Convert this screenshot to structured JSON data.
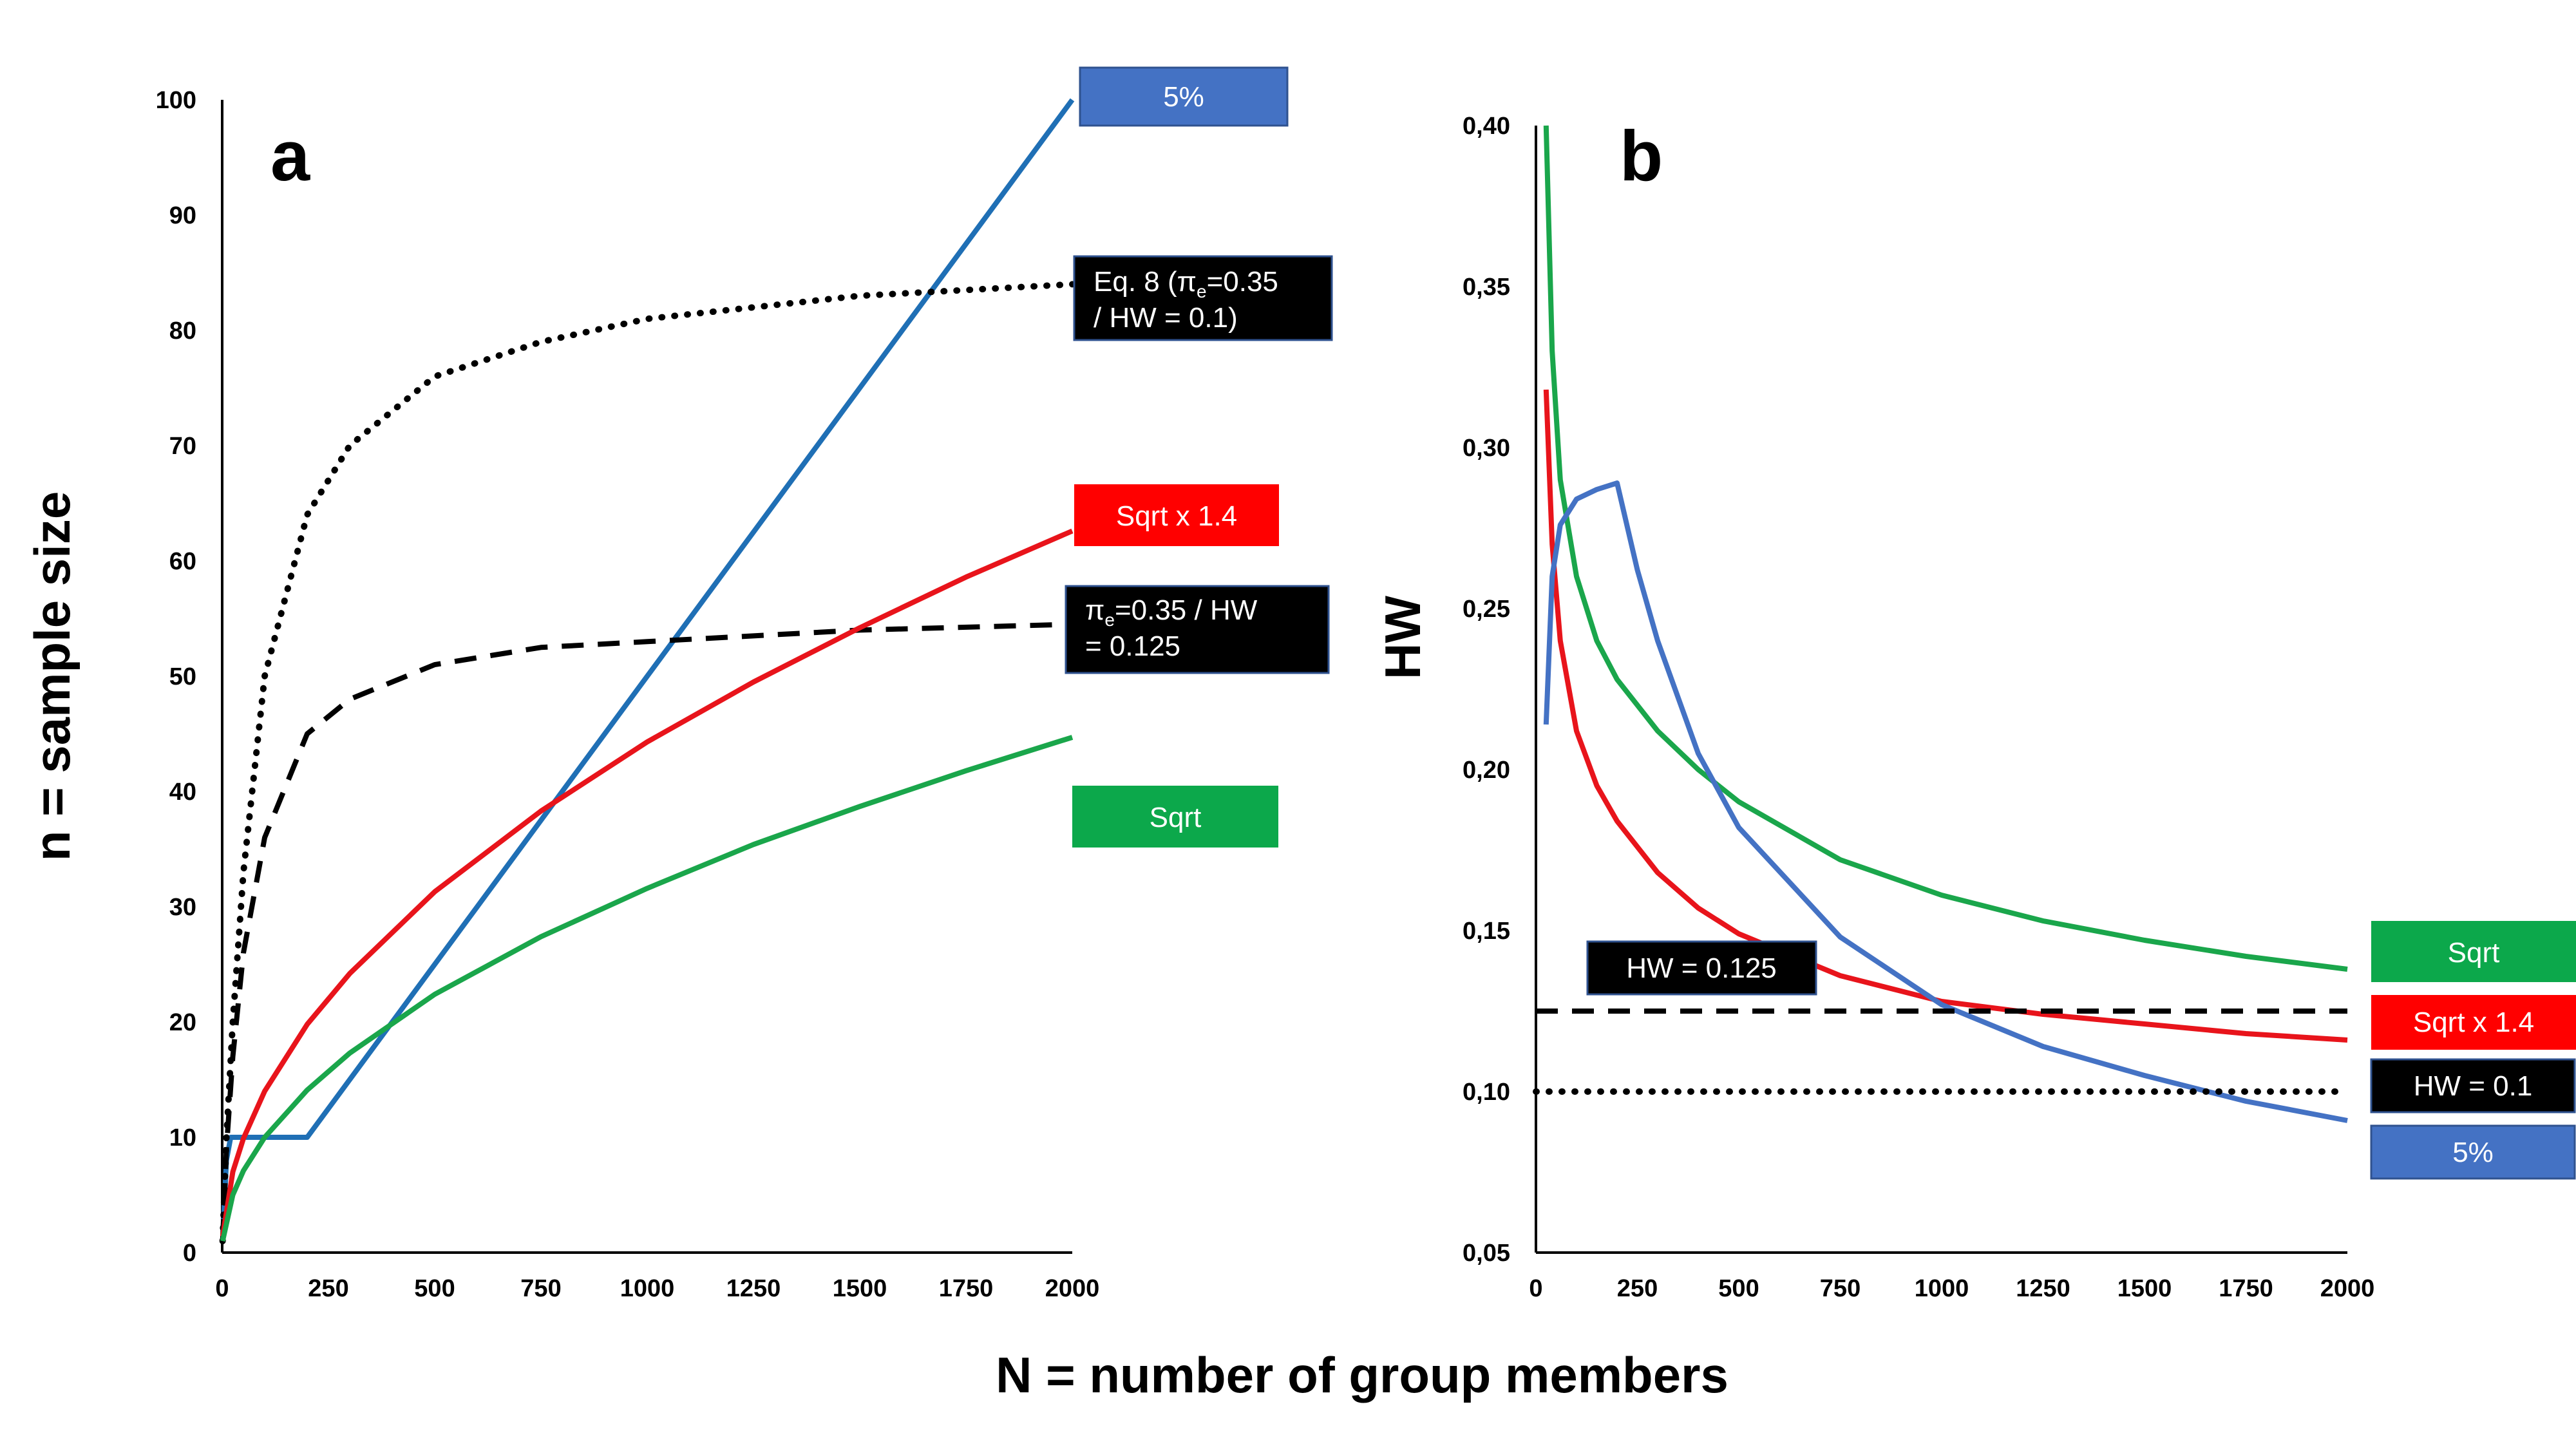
{
  "figure": {
    "x_axis_title": "N = number of group members",
    "colors": {
      "blue_a": "#1f6fb5",
      "blue_b": "#4472c4",
      "red": "#e8141b",
      "green": "#1aa64b",
      "black": "#000000"
    }
  },
  "chart_data": [
    {
      "panel": "a",
      "type": "line",
      "ylabel": "n = sample size",
      "xlabel": "N = number of group members",
      "xlim": [
        0,
        2000
      ],
      "ylim": [
        0,
        100
      ],
      "xticks": [
        "0",
        "250",
        "500",
        "750",
        "1000",
        "1250",
        "1500",
        "1750",
        "2000"
      ],
      "yticks": [
        "0",
        "10",
        "20",
        "30",
        "40",
        "50",
        "60",
        "70",
        "80",
        "90",
        "100"
      ],
      "grid": false,
      "series": [
        {
          "name": "5%",
          "style": "solid",
          "color": "#1f6fb5",
          "x": [
            1,
            10,
            20,
            50,
            100,
            150,
            200,
            500,
            1000,
            1500,
            2000
          ],
          "y": [
            1,
            8,
            10,
            10,
            10,
            10,
            10,
            25,
            50,
            75,
            100
          ]
        },
        {
          "name": "Eq. 8 (πe=0.35 / HW = 0.1)",
          "style": "dotted",
          "color": "#000000",
          "x": [
            1,
            10,
            25,
            50,
            100,
            200,
            300,
            500,
            750,
            1000,
            1500,
            2000
          ],
          "y": [
            1,
            10,
            20,
            33,
            50,
            64,
            70,
            76,
            79,
            81,
            83,
            84
          ]
        },
        {
          "name": "πe=0.35 / HW = 0.125",
          "style": "dashed",
          "color": "#000000",
          "x": [
            1,
            10,
            25,
            50,
            100,
            200,
            300,
            500,
            750,
            1000,
            1500,
            2000
          ],
          "y": [
            1,
            9,
            17,
            26,
            36,
            45,
            48,
            51,
            52.5,
            53,
            54,
            54.5
          ]
        },
        {
          "name": "Sqrt x 1.4",
          "style": "solid",
          "color": "#e8141b",
          "x": [
            1,
            25,
            50,
            100,
            200,
            300,
            500,
            750,
            1000,
            1250,
            1500,
            1750,
            2000
          ],
          "y": [
            1.4,
            7,
            9.9,
            14,
            19.8,
            24.2,
            31.3,
            38.3,
            44.3,
            49.5,
            54.2,
            58.6,
            62.6
          ]
        },
        {
          "name": "Sqrt",
          "style": "solid",
          "color": "#1aa64b",
          "x": [
            1,
            25,
            50,
            100,
            200,
            300,
            500,
            750,
            1000,
            1250,
            1500,
            1750,
            2000
          ],
          "y": [
            1,
            5,
            7.1,
            10,
            14.1,
            17.3,
            22.4,
            27.4,
            31.6,
            35.4,
            38.7,
            41.8,
            44.7
          ]
        }
      ],
      "labels": {
        "s5": "5%",
        "eq8_line1": "Eq. 8 (π",
        "eq8_sub": "e",
        "eq8_rest1": "=0.35",
        "eq8_line2": "/ HW = 0.1)",
        "pe_line1a": "π",
        "pe_sub": "e",
        "pe_line1b": "=0.35 / HW",
        "pe_line2": "= 0.125",
        "sqrt14": "Sqrt x 1.4",
        "sqrt": "Sqrt"
      }
    },
    {
      "panel": "b",
      "type": "line",
      "ylabel": "HW",
      "xlabel": "N = number of group members",
      "xlim": [
        0,
        2000
      ],
      "ylim": [
        0.05,
        0.4
      ],
      "xticks": [
        "0",
        "250",
        "500",
        "750",
        "1000",
        "1250",
        "1500",
        "1750",
        "2000"
      ],
      "yticks": [
        "0,05",
        "0,10",
        "0,15",
        "0,20",
        "0,25",
        "0,30",
        "0,35",
        "0,40"
      ],
      "grid": false,
      "series": [
        {
          "name": "Sqrt",
          "style": "solid",
          "color": "#1aa64b",
          "x": [
            25,
            40,
            60,
            100,
            150,
            200,
            300,
            400,
            500,
            750,
            1000,
            1250,
            1500,
            1750,
            2000
          ],
          "y": [
            0.4,
            0.33,
            0.29,
            0.26,
            0.24,
            0.228,
            0.212,
            0.2,
            0.19,
            0.172,
            0.161,
            0.153,
            0.147,
            0.142,
            0.138
          ]
        },
        {
          "name": "Sqrt x 1.4",
          "style": "solid",
          "color": "#e8141b",
          "x": [
            25,
            40,
            60,
            100,
            150,
            200,
            300,
            400,
            500,
            750,
            1000,
            1250,
            1500,
            1750,
            2000
          ],
          "y": [
            0.318,
            0.27,
            0.24,
            0.212,
            0.195,
            0.184,
            0.168,
            0.157,
            0.149,
            0.136,
            0.128,
            0.124,
            0.121,
            0.118,
            0.116
          ]
        },
        {
          "name": "5%",
          "style": "solid",
          "color": "#4472c4",
          "x": [
            25,
            40,
            60,
            100,
            150,
            200,
            250,
            300,
            400,
            500,
            750,
            1000,
            1250,
            1500,
            1750,
            2000
          ],
          "y": [
            0.214,
            0.26,
            0.276,
            0.284,
            0.287,
            0.289,
            0.262,
            0.24,
            0.205,
            0.182,
            0.148,
            0.127,
            0.114,
            0.105,
            0.097,
            0.091
          ]
        },
        {
          "name": "HW = 0.125",
          "style": "dashed",
          "color": "#000000",
          "x": [
            0,
            2000
          ],
          "y": [
            0.125,
            0.125
          ]
        },
        {
          "name": "HW = 0.1",
          "style": "dotted",
          "color": "#000000",
          "x": [
            0,
            2000
          ],
          "y": [
            0.1,
            0.1
          ]
        }
      ],
      "labels": {
        "hw125": "HW = 0.125",
        "sqrt": "Sqrt",
        "sqrt14": "Sqrt x 1.4",
        "hw01": "HW = 0.1",
        "s5": "5%"
      }
    }
  ]
}
